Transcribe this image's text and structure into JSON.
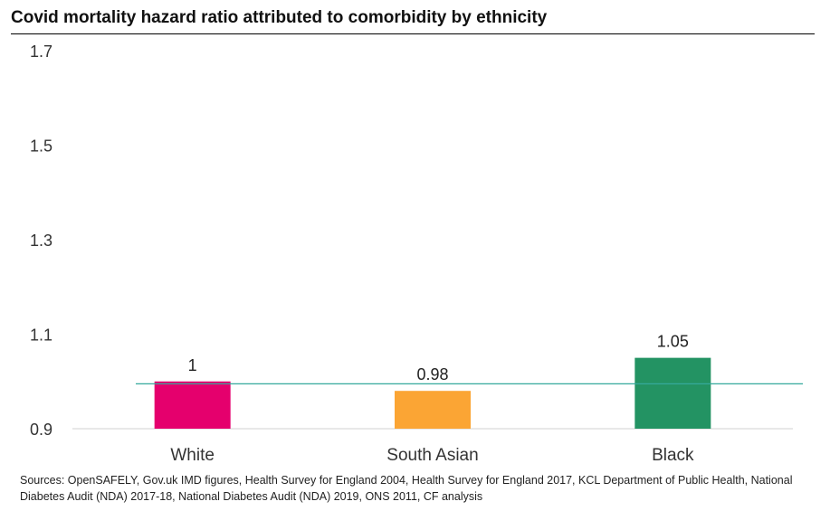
{
  "chart_data": {
    "type": "bar",
    "title": "Covid mortality hazard ratio attributed to comorbidity by ethnicity",
    "categories": [
      "White",
      "South Asian",
      "Black"
    ],
    "values": [
      1,
      0.98,
      1.05
    ],
    "value_labels": [
      "1",
      "0.98",
      "1.05"
    ],
    "colors": [
      "#e5006d",
      "#fba534",
      "#239363"
    ],
    "ylim": [
      0.9,
      1.7
    ],
    "yticks": [
      "0.9",
      "1.1",
      "1.3",
      "1.5",
      "1.7"
    ],
    "reference_line": {
      "value": 0.995,
      "color": "#35a99c"
    },
    "grid": false,
    "xlabel": "",
    "ylabel": ""
  },
  "source": "Sources: OpenSAFELY, Gov.uk IMD figures, Health Survey for England 2004, Health Survey for England 2017, KCL Department of Public Health, National Diabetes Audit (NDA) 2017-18, National Diabetes Audit (NDA) 2019, ONS 2011, CF analysis"
}
